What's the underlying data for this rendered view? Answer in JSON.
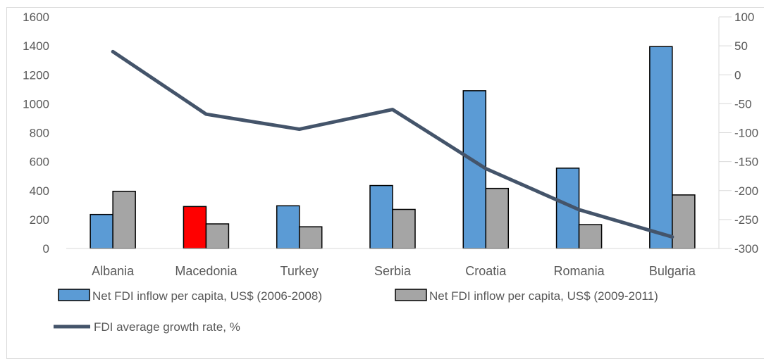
{
  "chart_data": {
    "type": "bar",
    "categories": [
      "Albania",
      "Macedonia",
      "Turkey",
      "Serbia",
      "Croatia",
      "Romania",
      "Bulgaria"
    ],
    "series": [
      {
        "name": "Net FDI inflow per capita, US$ (2006-2008)",
        "type": "bar",
        "axis": "left",
        "color": "#5b9bd5",
        "values": [
          235,
          290,
          295,
          435,
          1090,
          555,
          1395
        ],
        "highlight": {
          "index": 1,
          "color": "#ff0000"
        }
      },
      {
        "name": "Net FDI inflow per capita, US$ (2009-2011)",
        "type": "bar",
        "axis": "left",
        "color": "#a5a5a5",
        "values": [
          395,
          170,
          150,
          270,
          415,
          165,
          370
        ]
      },
      {
        "name": "FDI average growth rate, %",
        "type": "line",
        "axis": "right",
        "color": "#44546a",
        "values": [
          40,
          -68,
          -94,
          -60,
          -162,
          -233,
          -280
        ]
      }
    ],
    "y_left": {
      "lim": [
        0,
        1600
      ],
      "ticks": [
        "0",
        "200",
        "400",
        "600",
        "800",
        "1000",
        "1200",
        "1400",
        "1600"
      ]
    },
    "y_right": {
      "lim": [
        -300,
        100
      ],
      "ticks": [
        "-300",
        "-250",
        "-200",
        "-150",
        "-100",
        "-50",
        "0",
        "50",
        "100"
      ]
    },
    "grid": false,
    "legend_position": "bottom"
  }
}
